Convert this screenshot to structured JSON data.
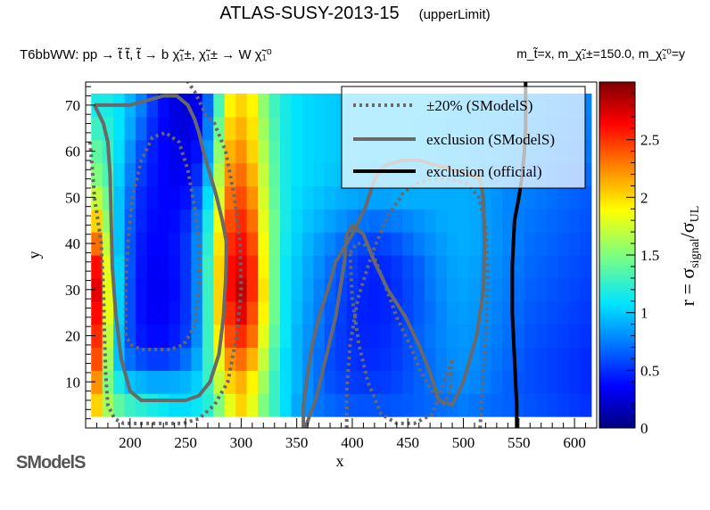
{
  "header": {
    "title": "ATLAS-SUSY-2013-15",
    "subtitle": "(upperLimit)",
    "process": "T6bbWW: pp → t̃ t̃, t̃ → b χ̃₁±, χ̃₁± → W χ̃₁⁰",
    "masses": "m_t̃=x, m_χ̃₁±=150.0, m_χ̃₁⁰=y"
  },
  "logo": {
    "text": "SModelS"
  },
  "chart_data": {
    "type": "heatmap",
    "title": "ATLAS-SUSY-2013-15",
    "xlabel": "x",
    "ylabel": "y",
    "xlim": [
      160,
      620
    ],
    "ylim": [
      0,
      75
    ],
    "xticks": [
      200,
      250,
      300,
      350,
      400,
      450,
      500,
      550,
      600
    ],
    "yticks": [
      10,
      20,
      30,
      40,
      50,
      60,
      70
    ],
    "colorbar": {
      "label": "r = σsignal/σUL",
      "range": [
        0,
        3
      ],
      "ticks": [
        0,
        0.5,
        1,
        1.5,
        2,
        2.5
      ],
      "colormap": "rainbow",
      "colors": [
        "#00007f",
        "#0000ff",
        "#007fff",
        "#00e5ff",
        "#7fff7f",
        "#ffff00",
        "#ff7f00",
        "#ff0000",
        "#7f0000"
      ]
    },
    "x": [
      170,
      180,
      190,
      200,
      210,
      220,
      230,
      240,
      250,
      260,
      270,
      280,
      290,
      300,
      310,
      320,
      330,
      340,
      350,
      360,
      370,
      380,
      390,
      400,
      410,
      420,
      430,
      440,
      450,
      460,
      470,
      480,
      490,
      500,
      510,
      520,
      530,
      540,
      550,
      560,
      570,
      580,
      590,
      600,
      610
    ],
    "y": [
      5,
      10,
      15,
      20,
      25,
      30,
      35,
      40,
      45,
      50,
      55,
      60,
      65,
      70
    ],
    "z": [
      [
        2.0,
        1.6,
        1.4,
        1.3,
        1.25,
        1.2,
        1.15,
        1.1,
        1.1,
        1.15,
        1.25,
        1.5,
        1.8,
        2.0,
        1.8,
        1.5,
        1.3,
        1.1,
        0.9,
        0.8,
        0.72,
        0.68,
        0.65,
        0.63,
        0.62,
        0.62,
        0.62,
        0.63,
        0.64,
        0.66,
        0.68,
        0.7,
        0.72,
        0.74,
        0.72,
        0.7,
        0.68,
        0.66,
        0.64,
        0.62,
        0.6,
        0.58,
        0.56,
        0.54,
        0.52
      ],
      [
        2.2,
        1.5,
        1.2,
        1.0,
        0.95,
        0.9,
        0.9,
        0.92,
        0.95,
        1.05,
        1.3,
        1.7,
        2.0,
        2.1,
        1.9,
        1.6,
        1.3,
        1.1,
        0.95,
        0.8,
        0.7,
        0.62,
        0.58,
        0.55,
        0.54,
        0.54,
        0.55,
        0.58,
        0.62,
        0.66,
        0.7,
        0.74,
        0.78,
        0.8,
        0.78,
        0.74,
        0.7,
        0.66,
        0.62,
        0.6,
        0.58,
        0.56,
        0.54,
        0.52,
        0.5
      ],
      [
        2.4,
        1.6,
        1.0,
        0.7,
        0.6,
        0.55,
        0.55,
        0.6,
        0.7,
        0.9,
        1.3,
        1.8,
        2.2,
        2.3,
        2.1,
        1.7,
        1.35,
        1.1,
        0.95,
        0.8,
        0.7,
        0.6,
        0.55,
        0.52,
        0.5,
        0.5,
        0.52,
        0.55,
        0.6,
        0.65,
        0.7,
        0.75,
        0.8,
        0.82,
        0.8,
        0.76,
        0.72,
        0.68,
        0.64,
        0.6,
        0.58,
        0.56,
        0.54,
        0.52,
        0.5
      ],
      [
        2.5,
        1.7,
        1.0,
        0.6,
        0.45,
        0.4,
        0.4,
        0.45,
        0.55,
        0.8,
        1.3,
        1.9,
        2.4,
        2.5,
        2.3,
        1.8,
        1.4,
        1.15,
        0.95,
        0.82,
        0.72,
        0.62,
        0.55,
        0.5,
        0.48,
        0.48,
        0.5,
        0.54,
        0.6,
        0.66,
        0.72,
        0.78,
        0.82,
        0.84,
        0.82,
        0.78,
        0.74,
        0.7,
        0.66,
        0.62,
        0.6,
        0.58,
        0.56,
        0.54,
        0.52
      ],
      [
        2.6,
        1.8,
        1.05,
        0.6,
        0.42,
        0.36,
        0.36,
        0.42,
        0.52,
        0.78,
        1.3,
        2.0,
        2.5,
        2.7,
        2.4,
        1.9,
        1.45,
        1.15,
        0.98,
        0.85,
        0.74,
        0.64,
        0.56,
        0.5,
        0.47,
        0.46,
        0.48,
        0.52,
        0.58,
        0.64,
        0.7,
        0.78,
        0.84,
        0.86,
        0.84,
        0.8,
        0.76,
        0.72,
        0.68,
        0.64,
        0.62,
        0.6,
        0.58,
        0.56,
        0.54
      ],
      [
        2.7,
        1.8,
        1.05,
        0.6,
        0.42,
        0.35,
        0.35,
        0.4,
        0.52,
        0.78,
        1.3,
        2.0,
        2.6,
        2.8,
        2.5,
        1.95,
        1.45,
        1.15,
        1.0,
        0.88,
        0.76,
        0.66,
        0.58,
        0.52,
        0.48,
        0.46,
        0.48,
        0.52,
        0.58,
        0.64,
        0.72,
        0.8,
        0.86,
        0.88,
        0.86,
        0.82,
        0.78,
        0.74,
        0.7,
        0.66,
        0.64,
        0.62,
        0.6,
        0.58,
        0.56
      ],
      [
        2.6,
        1.8,
        1.05,
        0.62,
        0.43,
        0.36,
        0.36,
        0.41,
        0.52,
        0.78,
        1.3,
        2.0,
        2.6,
        2.7,
        2.5,
        1.9,
        1.45,
        1.15,
        1.02,
        0.9,
        0.8,
        0.7,
        0.62,
        0.55,
        0.5,
        0.48,
        0.5,
        0.54,
        0.6,
        0.66,
        0.74,
        0.82,
        0.88,
        0.9,
        0.88,
        0.84,
        0.8,
        0.76,
        0.72,
        0.68,
        0.66,
        0.64,
        0.62,
        0.6,
        0.58
      ],
      [
        2.3,
        1.7,
        1.0,
        0.62,
        0.45,
        0.38,
        0.38,
        0.42,
        0.52,
        0.78,
        1.25,
        1.95,
        2.5,
        2.6,
        2.4,
        1.85,
        1.45,
        1.18,
        1.05,
        0.95,
        0.86,
        0.78,
        0.7,
        0.62,
        0.58,
        0.56,
        0.58,
        0.62,
        0.68,
        0.74,
        0.8,
        0.86,
        0.9,
        0.92,
        0.9,
        0.86,
        0.82,
        0.78,
        0.74,
        0.7,
        0.68,
        0.66,
        0.64,
        0.62,
        0.6
      ],
      [
        2.0,
        1.55,
        1.0,
        0.65,
        0.48,
        0.4,
        0.38,
        0.4,
        0.48,
        0.72,
        1.2,
        1.85,
        2.4,
        2.5,
        2.3,
        1.8,
        1.45,
        1.2,
        1.08,
        1.0,
        0.94,
        0.88,
        0.82,
        0.76,
        0.72,
        0.7,
        0.72,
        0.74,
        0.78,
        0.82,
        0.86,
        0.9,
        0.92,
        0.92,
        0.9,
        0.86,
        0.82,
        0.78,
        0.74,
        0.72,
        0.7,
        0.68,
        0.66,
        0.64,
        0.62
      ],
      [
        1.7,
        1.45,
        1.0,
        0.7,
        0.5,
        0.42,
        0.38,
        0.38,
        0.42,
        0.62,
        1.1,
        1.75,
        2.3,
        2.4,
        2.2,
        1.75,
        1.42,
        1.2,
        1.1,
        1.04,
        1.0,
        0.96,
        0.92,
        0.9,
        0.88,
        0.88,
        0.88,
        0.9,
        0.92,
        0.92,
        0.92,
        0.92,
        0.92,
        0.92,
        0.9,
        0.86,
        0.82,
        0.78,
        0.76,
        0.74,
        0.72,
        0.7,
        0.68,
        0.66,
        0.64
      ],
      [
        1.5,
        1.35,
        1.05,
        0.75,
        0.55,
        0.44,
        0.38,
        0.34,
        0.36,
        0.5,
        0.95,
        1.65,
        2.2,
        2.3,
        2.1,
        1.7,
        1.4,
        1.2,
        1.12,
        1.08,
        1.05,
        1.02,
        1.0,
        0.98,
        0.96,
        0.95,
        0.95,
        0.95,
        0.95,
        0.95,
        0.94,
        0.93,
        0.92,
        0.92,
        0.9,
        0.86,
        0.84,
        0.82,
        0.8,
        0.78,
        0.76,
        0.74,
        0.72,
        0.7,
        0.68
      ],
      [
        1.4,
        1.3,
        1.1,
        0.82,
        0.6,
        0.46,
        0.38,
        0.32,
        0.32,
        0.42,
        0.85,
        1.55,
        2.1,
        2.2,
        2.0,
        1.65,
        1.38,
        1.2,
        1.12,
        1.08,
        1.06,
        1.04,
        1.02,
        1.0,
        0.98,
        0.98,
        0.98,
        0.98,
        0.98,
        0.97,
        0.96,
        0.95,
        0.94,
        0.93,
        0.92,
        0.9,
        0.88,
        0.86,
        0.84,
        0.82,
        0.8,
        0.78,
        0.76,
        0.74,
        0.72
      ],
      [
        1.3,
        1.25,
        1.12,
        0.9,
        0.68,
        0.5,
        0.38,
        0.3,
        0.28,
        0.36,
        0.75,
        1.45,
        2.0,
        2.1,
        1.95,
        1.6,
        1.35,
        1.2,
        1.12,
        1.08,
        1.06,
        1.04,
        1.02,
        1.0,
        1.0,
        1.0,
        1.0,
        1.0,
        1.0,
        0.98,
        0.97,
        0.96,
        0.95,
        0.94,
        0.93,
        0.92,
        0.9,
        0.88,
        0.86,
        0.84,
        0.82,
        0.8,
        0.78,
        0.76,
        0.74
      ],
      [
        1.2,
        1.2,
        1.12,
        0.95,
        0.75,
        0.55,
        0.4,
        0.3,
        0.26,
        0.32,
        0.68,
        1.35,
        1.9,
        2.0,
        1.9,
        1.55,
        1.32,
        1.2,
        1.12,
        1.08,
        1.06,
        1.04,
        1.02,
        1.0,
        1.0,
        1.0,
        1.0,
        1.0,
        1.0,
        0.99,
        0.98,
        0.97,
        0.96,
        0.95,
        0.94,
        0.93,
        0.92,
        0.9,
        0.88,
        0.86,
        0.84,
        0.82,
        0.8,
        0.78,
        0.76
      ]
    ],
    "legend": {
      "placement": "top-right",
      "entries": [
        {
          "label": "±20% (SModelS)",
          "style": "dotted",
          "color": "#696969"
        },
        {
          "label": "exclusion (SModelS)",
          "style": "solid",
          "color": "#696969"
        },
        {
          "label": "exclusion (official)",
          "style": "solid",
          "color": "#000000"
        }
      ]
    },
    "contours": {
      "exclusion_official": {
        "x": [
          548,
          548,
          547,
          546,
          545,
          544,
          544,
          544,
          545,
          546,
          550,
          553,
          555,
          556,
          556
        ],
        "y": [
          0,
          5,
          10,
          15,
          20,
          25,
          30,
          35,
          40,
          45,
          50,
          55,
          60,
          65,
          75
        ]
      },
      "exclusion_smodels": [
        {
          "x": [
            168,
            176,
            180,
            182,
            183,
            184,
            187,
            192,
            200,
            210,
            222,
            236,
            250,
            262,
            272,
            280,
            284,
            286,
            287,
            283,
            278,
            272,
            266,
            262,
            258,
            252,
            242,
            230,
            215,
            200,
            185,
            176,
            172,
            168
          ],
          "y": [
            70,
            66,
            62,
            55,
            45,
            35,
            25,
            15,
            8,
            6,
            6,
            6,
            6,
            7,
            10,
            16,
            24,
            32,
            40,
            45,
            50,
            55,
            60,
            64,
            67,
            70,
            72,
            72,
            71,
            70,
            70,
            70,
            70,
            70
          ]
        },
        {
          "x": [
            356,
            356,
            360,
            364,
            370,
            378,
            385,
            400,
            412,
            420,
            430,
            445,
            460,
            475,
            490,
            505,
            515,
            518,
            519,
            518,
            512,
            500,
            490,
            478,
            470,
            460,
            448,
            432,
            420,
            410,
            400,
            395,
            393,
            385,
            375,
            367,
            362,
            358
          ],
          "y": [
            0,
            5,
            12,
            18,
            24,
            30,
            36,
            42,
            48,
            54,
            57,
            58,
            58,
            57,
            56,
            55,
            54,
            50,
            40,
            30,
            20,
            10,
            5,
            6,
            12,
            18,
            24,
            30,
            36,
            42,
            44,
            42,
            36,
            24,
            14,
            6,
            3,
            0
          ]
        }
      ],
      "band_plus20": [
        {
          "x": [
            164,
            168,
            174,
            176,
            177,
            178,
            180,
            186,
            194,
            204,
            216,
            232,
            248,
            262,
            276,
            288,
            296,
            300,
            299,
            294,
            286,
            276,
            268,
            264,
            258,
            252
          ],
          "y": [
            62,
            50,
            40,
            30,
            20,
            12,
            5,
            2,
            1,
            1,
            1,
            1,
            1,
            2,
            5,
            10,
            20,
            30,
            40,
            50,
            60,
            66,
            68,
            70,
            73,
            75
          ]
        },
        {
          "x": [
            395,
            395,
            398,
            405,
            418,
            432,
            446,
            458,
            472,
            488,
            504,
            514,
            520,
            522,
            521,
            518,
            515
          ],
          "y": [
            0,
            8,
            18,
            28,
            38,
            46,
            51,
            53,
            54,
            54,
            53,
            50,
            44,
            34,
            24,
            12,
            0
          ]
        }
      ],
      "band_minus20": [
        {
          "x": [
            196,
            196,
            198,
            202,
            210,
            220,
            232,
            244,
            252,
            258,
            262,
            262,
            258,
            248,
            236,
            222,
            210,
            201,
            196
          ],
          "y": [
            20,
            30,
            40,
            50,
            58,
            63,
            64,
            62,
            56,
            48,
            40,
            30,
            22,
            18,
            17,
            17,
            17,
            18,
            20
          ]
        },
        {
          "x": [
            398,
            404,
            410,
            418,
            428,
            440,
            452,
            462,
            472,
            482,
            488,
            490,
            486,
            472,
            456,
            440,
            426,
            414,
            406,
            400,
            398
          ],
          "y": [
            38,
            40,
            40,
            38,
            32,
            24,
            18,
            12,
            8,
            5,
            8,
            15,
            12,
            3,
            1,
            1,
            3,
            10,
            18,
            28,
            38
          ]
        }
      ]
    }
  }
}
